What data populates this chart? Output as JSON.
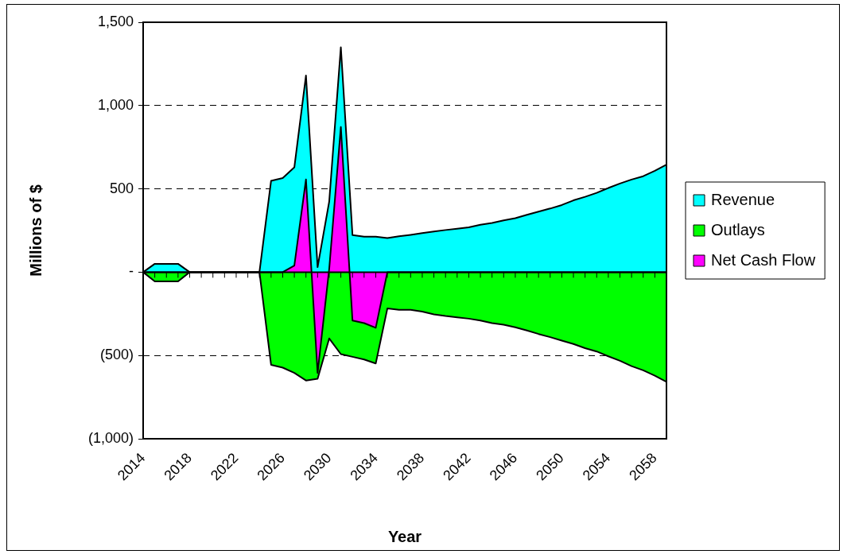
{
  "chart_data": {
    "type": "area",
    "xlabel": "Year",
    "ylabel": "Millions of $",
    "categories": [
      "2014",
      null,
      null,
      null,
      "2018",
      null,
      null,
      null,
      "2022",
      null,
      null,
      null,
      "2026",
      null,
      null,
      null,
      "2030",
      null,
      null,
      null,
      "2034",
      null,
      null,
      null,
      "2038",
      null,
      null,
      null,
      "2042",
      null,
      null,
      null,
      "2046",
      null,
      null,
      null,
      "2050",
      null,
      null,
      null,
      "2054",
      null,
      null,
      null,
      "2058",
      null
    ],
    "series": [
      {
        "name": "Revenue",
        "color": "#00ffff",
        "values": [
          0,
          50,
          50,
          50,
          0,
          0,
          0,
          0,
          0,
          0,
          0,
          548,
          565,
          629,
          1180,
          30,
          424,
          1350,
          223,
          213,
          213,
          205,
          215,
          224,
          234,
          244,
          253,
          261,
          269,
          285,
          295,
          311,
          324,
          344,
          363,
          382,
          403,
          431,
          452,
          476,
          505,
          532,
          556,
          576,
          608,
          645
        ]
      },
      {
        "name": "Outlays",
        "color": "#00ff00",
        "values": [
          0,
          -55,
          -55,
          -55,
          0,
          0,
          0,
          0,
          0,
          0,
          0,
          -556,
          -573,
          -605,
          -650,
          -640,
          -398,
          -492,
          -508,
          -524,
          -548,
          -218,
          -226,
          -226,
          -237,
          -253,
          -263,
          -271,
          -279,
          -290,
          -306,
          -315,
          -331,
          -350,
          -371,
          -390,
          -411,
          -431,
          -456,
          -476,
          -505,
          -532,
          -564,
          -589,
          -621,
          -658
        ]
      },
      {
        "name": "Net Cash Flow",
        "color": "#ff00ff",
        "values": [
          0,
          0,
          0,
          0,
          0,
          0,
          0,
          0,
          0,
          0,
          0,
          0,
          0,
          40,
          556,
          -605,
          20,
          871,
          -290,
          -306,
          -334,
          0,
          0,
          0,
          0,
          0,
          0,
          0,
          0,
          0,
          0,
          0,
          0,
          0,
          0,
          0,
          0,
          0,
          0,
          0,
          0,
          0,
          0,
          0,
          0,
          0
        ]
      }
    ],
    "ylim": [
      -1000,
      1500
    ],
    "yticks": [
      {
        "value": -1000,
        "label": "(1,000)"
      },
      {
        "value": -500,
        "label": "(500)"
      },
      {
        "value": 0,
        "label": "-"
      },
      {
        "value": 500,
        "label": "500"
      },
      {
        "value": 1000,
        "label": "1,000"
      },
      {
        "value": 1500,
        "label": "1,500"
      }
    ],
    "grid": "y",
    "legend": "right"
  }
}
